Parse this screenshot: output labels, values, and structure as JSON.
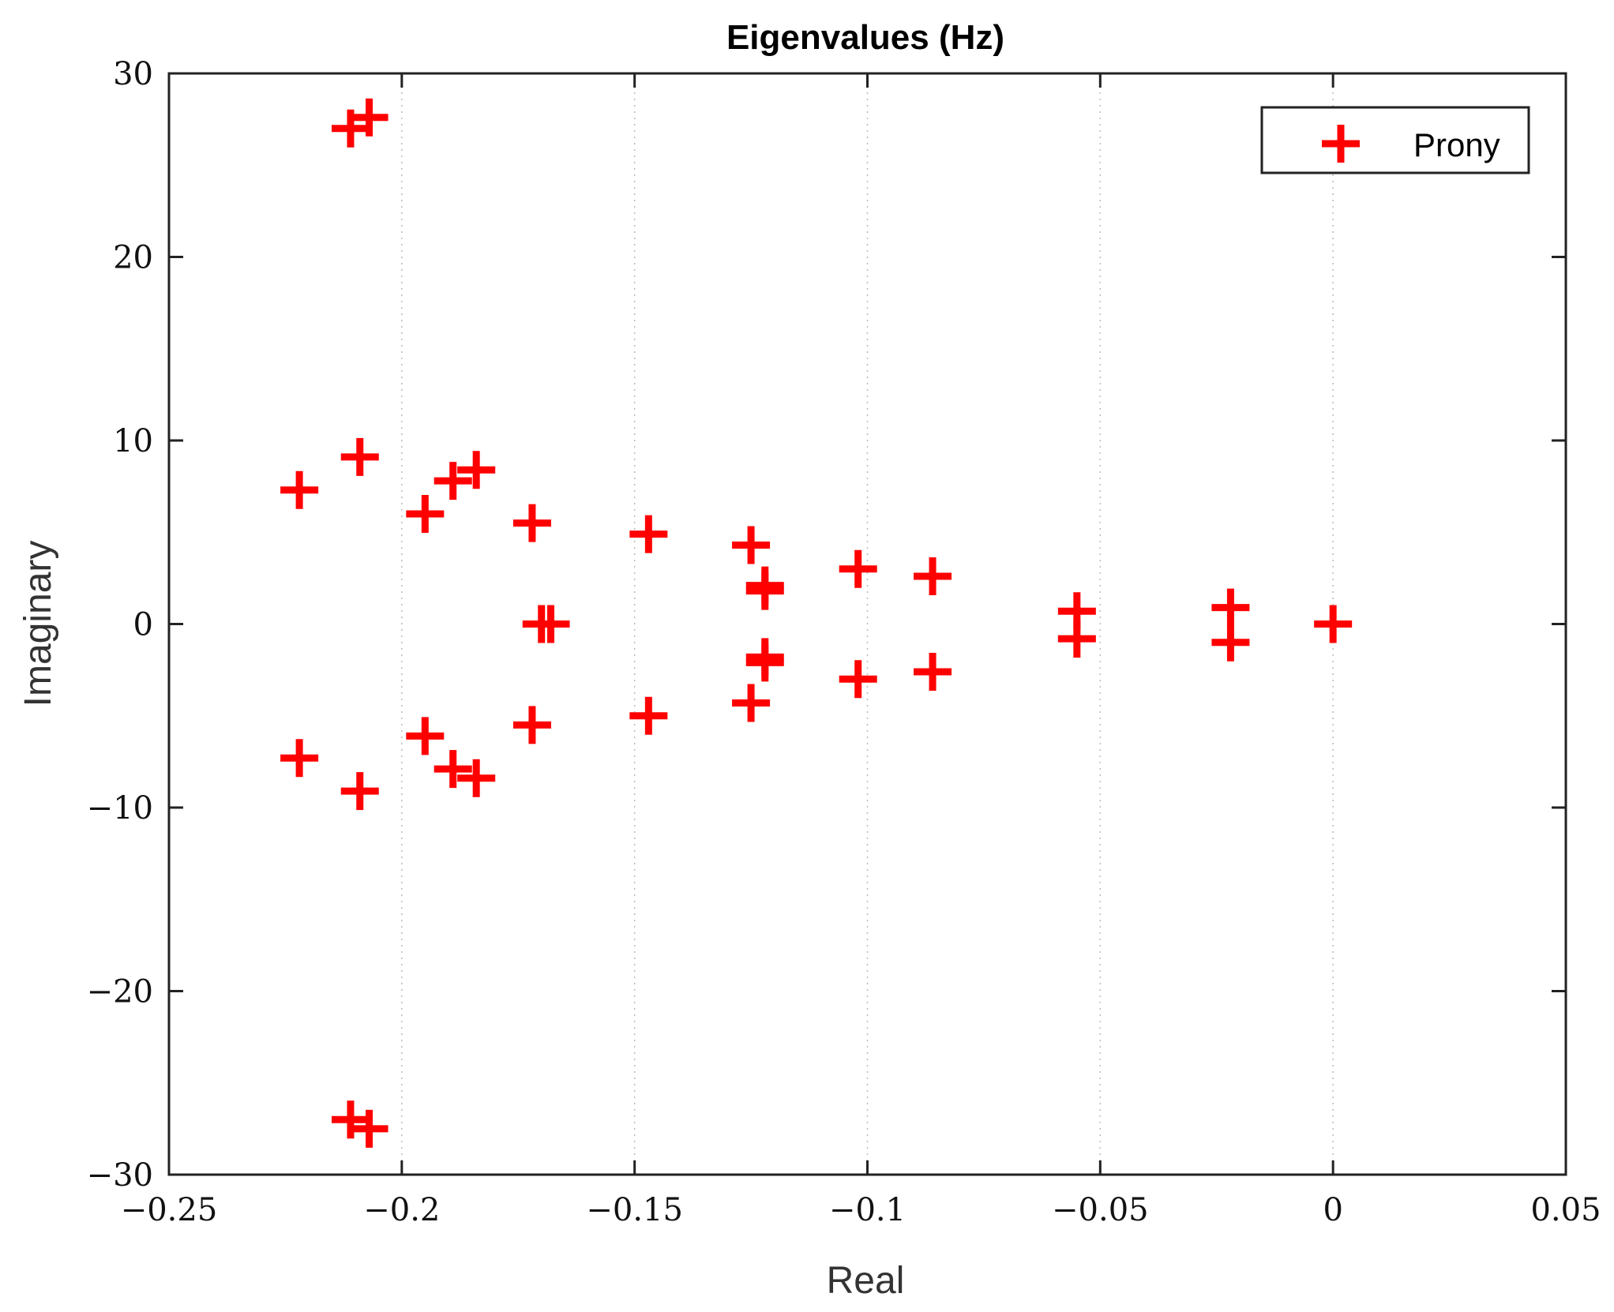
{
  "chart_data": {
    "type": "scatter",
    "title": "Eigenvalues (Hz)",
    "xlabel": "Real",
    "ylabel": "Imaginary",
    "xlim": [
      -0.25,
      0.05
    ],
    "ylim": [
      -30,
      30
    ],
    "xticks": [
      -0.25,
      -0.2,
      -0.15,
      -0.1,
      -0.05,
      0,
      0.05
    ],
    "xtick_labels": [
      "−0.25",
      "−0.2",
      "−0.15",
      "−0.1",
      "−0.05",
      "0",
      "0.05"
    ],
    "yticks": [
      30,
      20,
      10,
      0,
      -10,
      -20,
      -30
    ],
    "ytick_labels": [
      "30",
      "20",
      "10",
      "0",
      "−10",
      "−20",
      "−30"
    ],
    "grid": "x-dotted",
    "legend_position": "top-right",
    "marker": "plus",
    "color": "#ff0000",
    "series": [
      {
        "name": "Prony",
        "points": [
          [
            -0.211,
            27.0
          ],
          [
            -0.207,
            27.6
          ],
          [
            -0.211,
            -27.0
          ],
          [
            -0.207,
            -27.5
          ],
          [
            -0.222,
            7.3
          ],
          [
            -0.222,
            -7.3
          ],
          [
            -0.209,
            9.1
          ],
          [
            -0.209,
            -9.1
          ],
          [
            -0.195,
            6.0
          ],
          [
            -0.195,
            -6.1
          ],
          [
            -0.189,
            7.8
          ],
          [
            -0.189,
            -7.9
          ],
          [
            -0.184,
            8.4
          ],
          [
            -0.184,
            -8.4
          ],
          [
            -0.172,
            5.5
          ],
          [
            -0.172,
            -5.5
          ],
          [
            -0.17,
            0.0
          ],
          [
            -0.168,
            0.0
          ],
          [
            -0.147,
            4.9
          ],
          [
            -0.147,
            -5.0
          ],
          [
            -0.125,
            4.3
          ],
          [
            -0.125,
            -4.3
          ],
          [
            -0.122,
            2.1
          ],
          [
            -0.122,
            1.8
          ],
          [
            -0.122,
            -1.8
          ],
          [
            -0.122,
            -2.1
          ],
          [
            -0.102,
            3.0
          ],
          [
            -0.102,
            -3.0
          ],
          [
            -0.086,
            2.6
          ],
          [
            -0.086,
            -2.6
          ],
          [
            -0.055,
            0.7
          ],
          [
            -0.055,
            -0.8
          ],
          [
            -0.022,
            0.9
          ],
          [
            -0.022,
            -1.0
          ],
          [
            0.0,
            0.0
          ]
        ]
      }
    ]
  }
}
